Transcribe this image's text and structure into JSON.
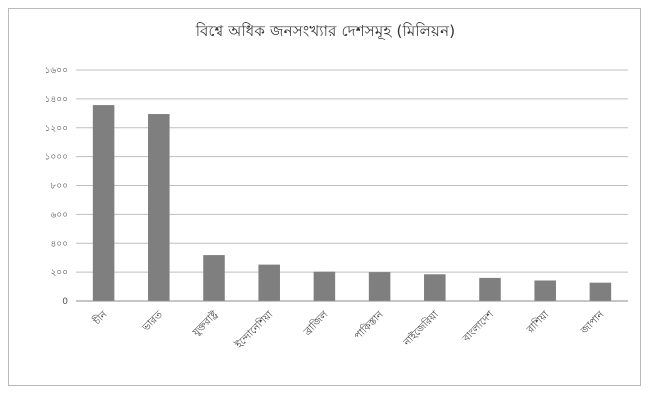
{
  "chart_data": {
    "type": "bar",
    "title": "বিশ্বে অধিক জনসংখ্যার দেশসমূহ (মিলিয়ন)",
    "categories": [
      "চীন",
      "ভারত",
      "যুক্তরাষ্ট্র",
      "ইন্দোনেশিয়া",
      "ব্রাজিল",
      "পাকিস্তান",
      "নাইজেরিয়া",
      "বাংলাদেশ",
      "রাশিয়া",
      "জাপান"
    ],
    "series": [
      {
        "values": [
          1357,
          1295,
          318,
          252,
          203,
          200,
          185,
          160,
          142,
          127
        ]
      }
    ],
    "y_ticks": [
      "0",
      "২০০",
      "৪০০",
      "৬০০",
      "৮০০",
      "১০০০",
      "১২০০",
      "১৪০০",
      "১৬০০"
    ],
    "ylim": [
      0,
      1600
    ],
    "grid": true,
    "legend": "none",
    "bar_color": "#7f7f7f",
    "gridline_color": "#bfbfbf",
    "axis_color": "#8c8c8c"
  }
}
